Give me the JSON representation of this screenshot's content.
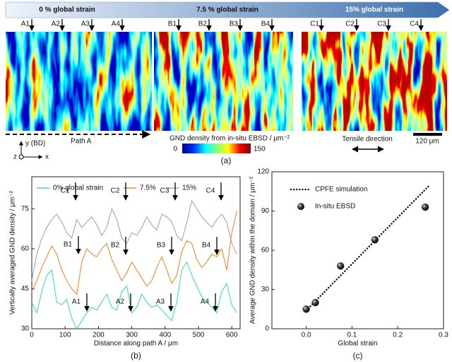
{
  "panel_a": {
    "banner": [
      "0 % global strain",
      "7.5 % global strain",
      "15% global strain"
    ],
    "markers": [
      [
        "A1",
        "A2",
        "A3",
        "A4"
      ],
      [
        "B1",
        "B2",
        "B3",
        "B4"
      ],
      [
        "C1",
        "C2",
        "C3",
        "C4"
      ]
    ],
    "path_label": "Path A",
    "axes": {
      "y": "y (BD)",
      "x": "x",
      "z": "z"
    },
    "colorbar": {
      "title": "GND density from in-situ EBSD / μm⁻²",
      "min": 0,
      "max": 150
    },
    "tensile": "Tensile direction",
    "scale_bar": "120 μm",
    "label": "(a)"
  },
  "chart_data": [
    {
      "type": "line",
      "xlabel": "Distance along path A / μm",
      "ylabel": "Vertically averaged GND density / μm⁻²",
      "panel_label": "(b)",
      "x": [
        0,
        15,
        30,
        45,
        60,
        75,
        90,
        105,
        120,
        135,
        150,
        165,
        180,
        195,
        210,
        225,
        240,
        255,
        270,
        285,
        300,
        315,
        330,
        345,
        360,
        375,
        390,
        405,
        420,
        435,
        450,
        465,
        480,
        495,
        510,
        525,
        540,
        555,
        570,
        585,
        600,
        615
      ],
      "series": [
        {
          "name": "0% global strain",
          "color": "#3ee0b0",
          "values": [
            40,
            36,
            44,
            50,
            52,
            40,
            39,
            41,
            34,
            30,
            33,
            36,
            38,
            37,
            40,
            43,
            38,
            37,
            44,
            46,
            36,
            38,
            43,
            40,
            38,
            39,
            37,
            35,
            33,
            40,
            52,
            55,
            50,
            46,
            42,
            40,
            38,
            36,
            44,
            47,
            39,
            36
          ]
        },
        {
          "name": "7.5%",
          "color": "#f08a2c",
          "values": [
            44,
            48,
            53,
            57,
            61,
            58,
            52,
            48,
            45,
            43,
            55,
            60,
            58,
            57,
            60,
            62,
            56,
            52,
            48,
            51,
            55,
            52,
            49,
            46,
            48,
            53,
            57,
            52,
            47,
            50,
            59,
            63,
            62,
            56,
            53,
            55,
            58,
            57,
            60,
            52,
            66,
            74
          ]
        },
        {
          "name": "15%",
          "color": "#a39ed6",
          "values": [
            48,
            58,
            64,
            68,
            71,
            73,
            70,
            66,
            64,
            71,
            68,
            70,
            72,
            69,
            65,
            68,
            75,
            71,
            64,
            62,
            66,
            65,
            68,
            72,
            69,
            67,
            73,
            72,
            70,
            65,
            63,
            70,
            78,
            75,
            72,
            70,
            68,
            71,
            73,
            70,
            62,
            58
          ]
        }
      ],
      "annotations": [
        "C1",
        "C2",
        "C3",
        "C4",
        "B1",
        "B2",
        "B3",
        "B4",
        "A1",
        "A2",
        "A3",
        "A4"
      ],
      "xlim": [
        0,
        625
      ],
      "ylim": [
        30,
        87
      ],
      "xticks": [
        0,
        100,
        200,
        300,
        400,
        500,
        600
      ],
      "yticks": [
        30,
        45,
        60,
        75
      ]
    },
    {
      "type": "scatter",
      "xlabel": "Global strain",
      "ylabel": "Average GND density within the domain / μm⁻²",
      "panel_label": "(c)",
      "series": [
        {
          "name": "CPFE simulation",
          "style": "dotted",
          "color": "#111111",
          "x": [
            0,
            0.27
          ],
          "values": [
            14,
            110
          ]
        },
        {
          "name": "In-situ EBSD",
          "style": "sphere",
          "color": "#111111",
          "x": [
            0,
            0.02,
            0.075,
            0.15,
            0.26
          ],
          "values": [
            15,
            20,
            48,
            68,
            93
          ]
        }
      ],
      "xlim": [
        -0.075,
        0.3
      ],
      "ylim": [
        0,
        120
      ],
      "xticks": [
        {
          "value": 0,
          "label": "0.0"
        },
        0.1,
        0.2,
        0.3
      ],
      "yticks": [
        0,
        30,
        60,
        90,
        120
      ]
    }
  ]
}
